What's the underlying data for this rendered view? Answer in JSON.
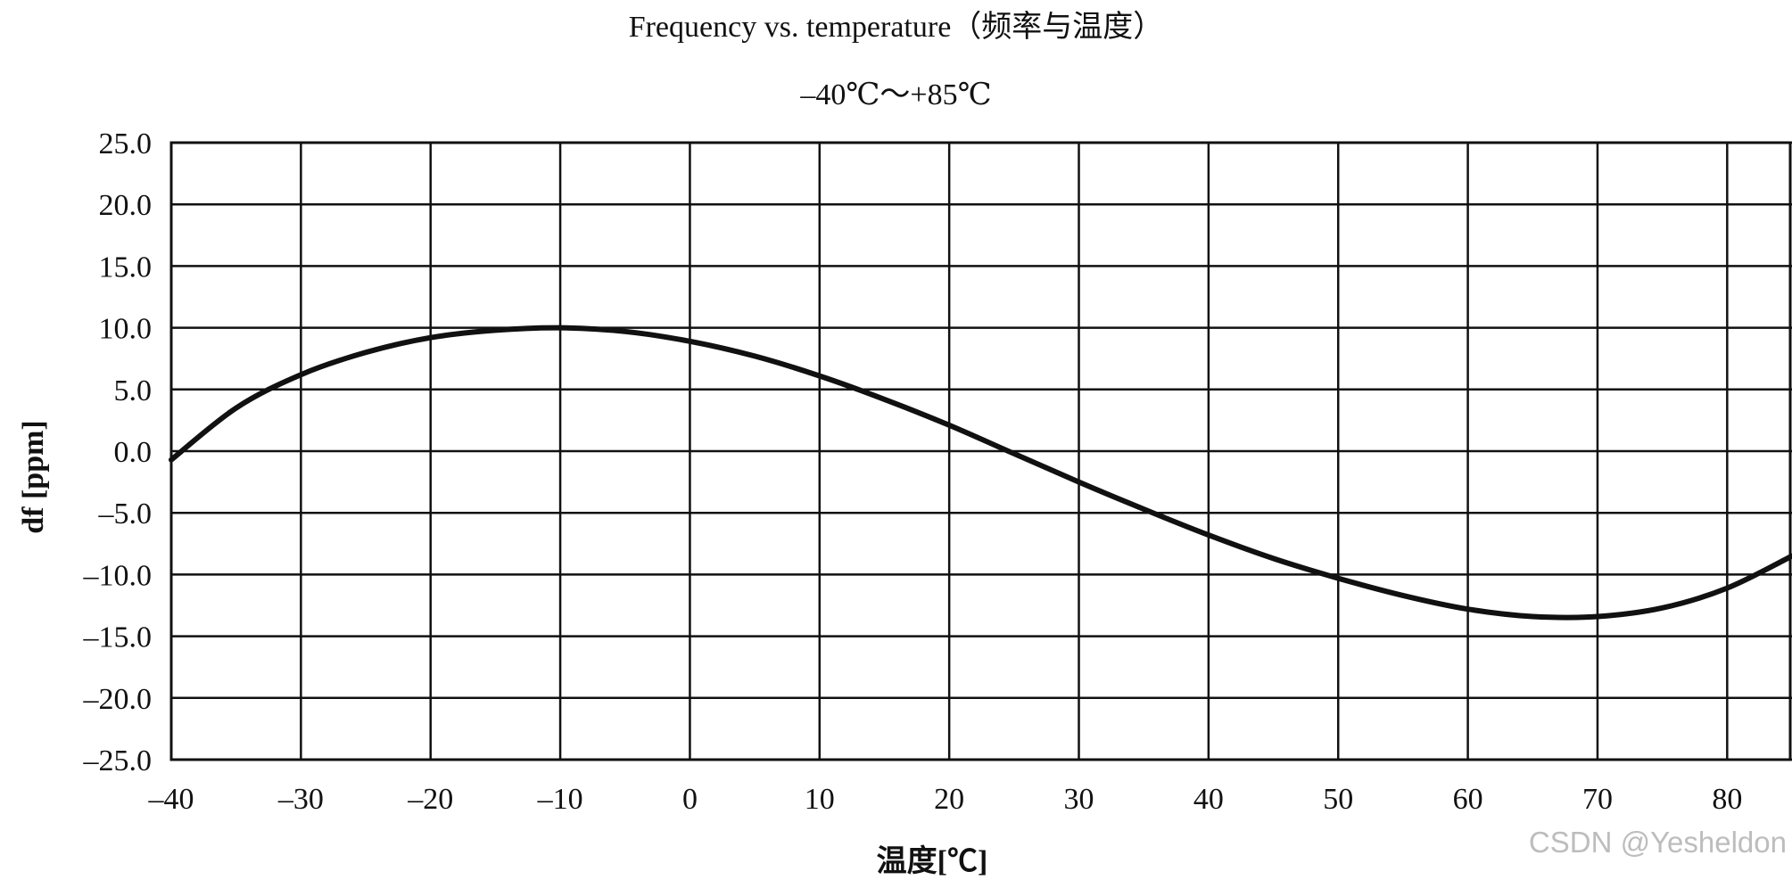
{
  "chart_data": {
    "type": "line",
    "title": "Frequency vs. temperature（频率与温度）",
    "subtitle": "–40℃～+85℃",
    "xlabel": "温度[℃]",
    "ylabel": "df [ppm]",
    "xlim": [
      -40,
      85
    ],
    "ylim": [
      -25,
      25
    ],
    "xticks": [
      -40,
      -30,
      -20,
      -10,
      0,
      10,
      20,
      30,
      40,
      50,
      60,
      70,
      80
    ],
    "xtick_labels": [
      "–40",
      "–30",
      "–20",
      "–10",
      "0",
      "10",
      "20",
      "30",
      "40",
      "50",
      "60",
      "70",
      "80"
    ],
    "yticks": [
      25,
      20,
      15,
      10,
      5,
      0,
      -5,
      -10,
      -15,
      -20,
      -25
    ],
    "ytick_labels": [
      "25.0",
      "20.0",
      "15.0",
      "10.0",
      "5.0",
      "0.0",
      "–5.0",
      "–10.0",
      "–15.0",
      "–20.0",
      "–25.0"
    ],
    "grid": true,
    "series": [
      {
        "x": [
          -40,
          -35,
          -30,
          -25,
          -20,
          -15,
          -10,
          -5,
          0,
          5,
          10,
          15,
          20,
          25,
          30,
          35,
          40,
          45,
          50,
          55,
          60,
          65,
          70,
          75,
          80,
          85
        ],
        "values": [
          -0.7,
          3.5,
          6.2,
          8.0,
          9.2,
          9.8,
          10.0,
          9.7,
          8.9,
          7.7,
          6.1,
          4.2,
          2.1,
          -0.2,
          -2.5,
          -4.7,
          -6.8,
          -8.7,
          -10.3,
          -11.7,
          -12.8,
          -13.4,
          -13.4,
          -12.7,
          -11.1,
          -8.5
        ]
      }
    ],
    "line_color": "#111111",
    "grid_color": "#111111"
  },
  "watermark": "CSDN @Yesheldon"
}
